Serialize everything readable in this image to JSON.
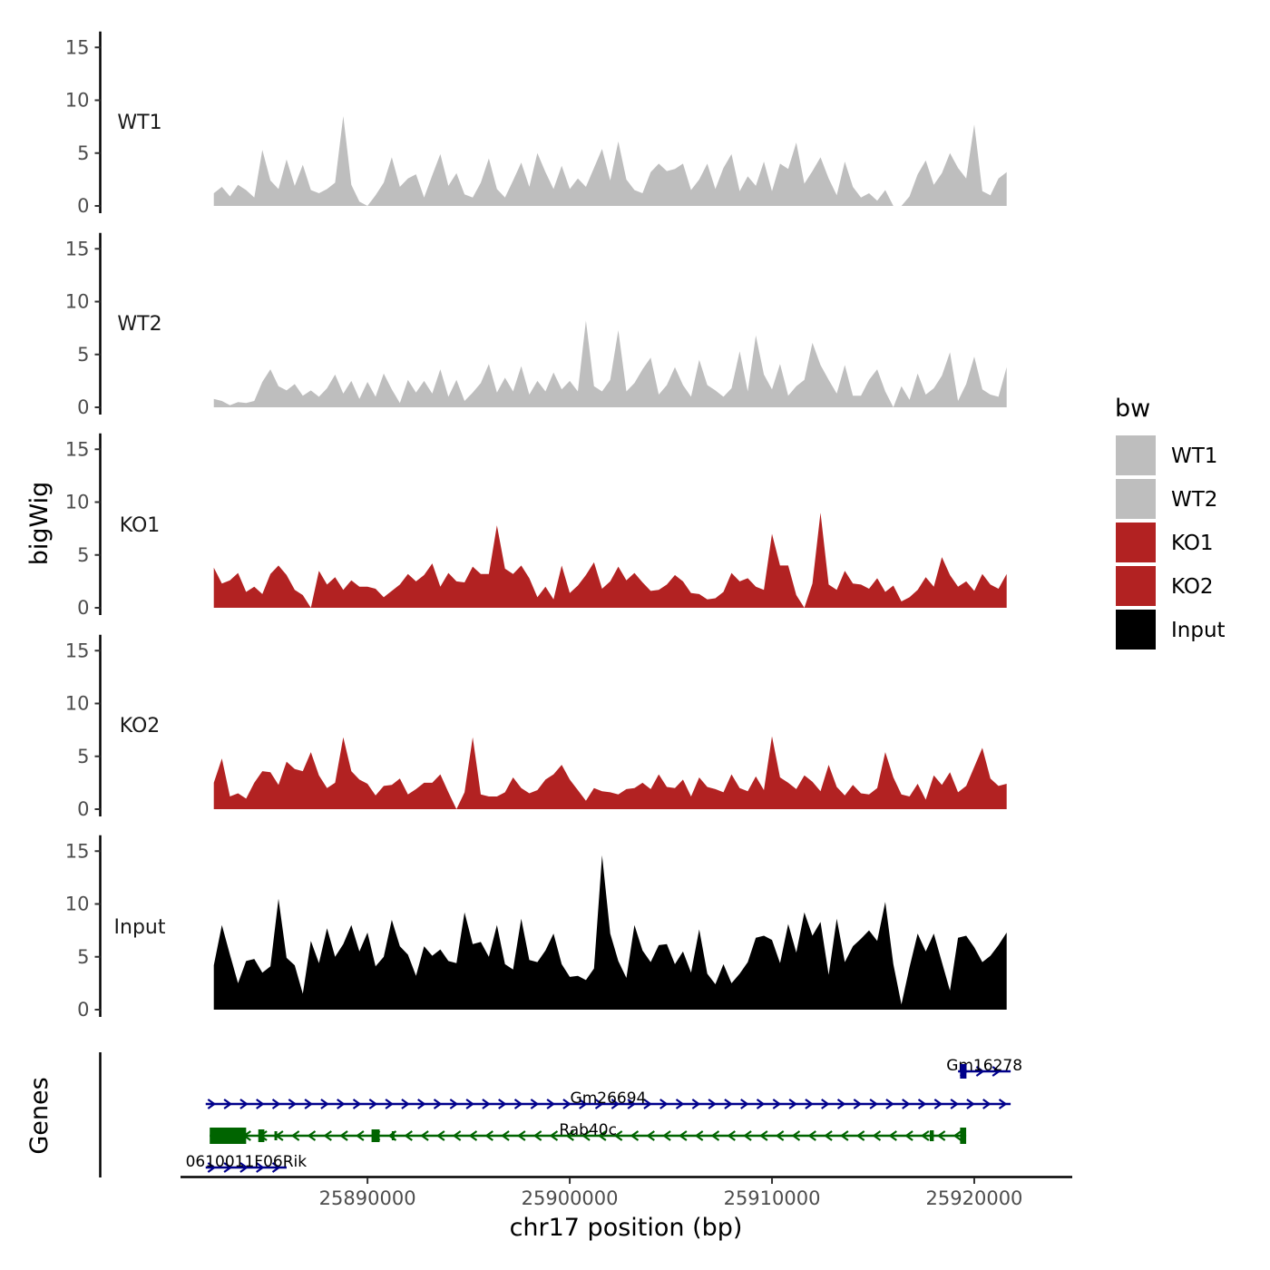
{
  "chart_data": {
    "type": "area",
    "title": "",
    "y_axis_title": "bigWig",
    "genes_axis_title": "Genes",
    "xlabel": "chr17 position (bp)",
    "x_range": [
      25880800,
      25924800
    ],
    "x_ticks": [
      25890000,
      25900000,
      25910000,
      25920000
    ],
    "x_tick_labels": [
      "25890000",
      "25900000",
      "25910000",
      "25920000"
    ],
    "y_range": [
      0,
      16.5
    ],
    "y_ticks": [
      0,
      5,
      10,
      15
    ],
    "y_tick_labels": [
      "0",
      "5",
      "10",
      "15"
    ],
    "legend": {
      "title": "bw",
      "items": [
        {
          "label": "WT1",
          "color": "#bebebe"
        },
        {
          "label": "WT2",
          "color": "#bebebe"
        },
        {
          "label": "KO1",
          "color": "#b22222"
        },
        {
          "label": "KO2",
          "color": "#b22222"
        },
        {
          "label": "Input",
          "color": "#000000"
        }
      ]
    },
    "signal_x": [
      25882400,
      25882800,
      25883200,
      25883600,
      25884000,
      25884400,
      25884800,
      25885200,
      25885600,
      25886000,
      25886400,
      25886800,
      25887200,
      25887600,
      25888000,
      25888400,
      25888800,
      25889200,
      25889600,
      25890000,
      25890400,
      25890800,
      25891200,
      25891600,
      25892000,
      25892400,
      25892800,
      25893200,
      25893600,
      25894000,
      25894400,
      25894800,
      25895200,
      25895600,
      25896000,
      25896400,
      25896800,
      25897200,
      25897600,
      25898000,
      25898400,
      25898800,
      25899200,
      25899600,
      25900000,
      25900400,
      25900800,
      25901200,
      25901600,
      25902000,
      25902400,
      25902800,
      25903200,
      25903600,
      25904000,
      25904400,
      25904800,
      25905200,
      25905600,
      25906000,
      25906400,
      25906800,
      25907200,
      25907600,
      25908000,
      25908400,
      25908800,
      25909200,
      25909600,
      25910000,
      25910400,
      25910800,
      25911200,
      25911600,
      25912000,
      25912400,
      25912800,
      25913200,
      25913600,
      25914000,
      25914400,
      25914800,
      25915200,
      25915600,
      25916000,
      25916400,
      25916800,
      25917200,
      25917600,
      25918000,
      25918400,
      25918800,
      25919200,
      25919600,
      25920000,
      25920400,
      25920800,
      25921200,
      25921600
    ],
    "series": [
      {
        "name": "WT1",
        "color": "#bebebe",
        "values": [
          1.2,
          1.8,
          0.9,
          2.0,
          1.5,
          0.8,
          5.3,
          2.4,
          1.6,
          4.4,
          1.9,
          3.9,
          1.5,
          1.2,
          1.6,
          2.2,
          8.5,
          2.0,
          0.4,
          0,
          1.0,
          2.2,
          4.6,
          1.8,
          2.6,
          3.0,
          0.8,
          2.9,
          4.9,
          1.9,
          3.1,
          1.1,
          0.8,
          2.2,
          4.5,
          1.6,
          0.8,
          2.4,
          4.1,
          1.8,
          5.0,
          3.2,
          1.6,
          3.8,
          1.6,
          2.6,
          1.8,
          3.6,
          5.4,
          2.4,
          6.1,
          2.5,
          1.5,
          1.2,
          3.2,
          4.0,
          3.3,
          3.5,
          4.0,
          1.5,
          2.5,
          4.0,
          1.6,
          3.6,
          4.9,
          1.4,
          2.8,
          1.9,
          4.2,
          1.4,
          4.0,
          3.5,
          6.0,
          2.1,
          3.3,
          4.6,
          2.6,
          1.0,
          4.2,
          1.8,
          0.8,
          1.2,
          0.5,
          1.5,
          0,
          0,
          0.9,
          3.0,
          4.3,
          2.0,
          3.1,
          5.0,
          3.6,
          2.6,
          7.7,
          1.4,
          1.0,
          2.6,
          3.2
        ]
      },
      {
        "name": "WT2",
        "color": "#bebebe",
        "values": [
          0.8,
          0.6,
          0.2,
          0.5,
          0.4,
          0.6,
          2.4,
          3.6,
          2.0,
          1.6,
          2.2,
          1.1,
          1.6,
          1.0,
          1.8,
          3.1,
          1.3,
          2.5,
          0.8,
          2.4,
          1.0,
          3.2,
          1.7,
          0.4,
          2.6,
          1.4,
          2.5,
          1.3,
          3.6,
          1.0,
          2.6,
          0.6,
          1.4,
          2.3,
          4.1,
          1.4,
          2.8,
          1.5,
          3.9,
          1.2,
          2.5,
          1.5,
          3.3,
          1.7,
          2.5,
          1.5,
          8.2,
          2.0,
          1.5,
          2.6,
          7.3,
          1.5,
          2.3,
          3.6,
          4.7,
          1.2,
          2.1,
          3.8,
          2.1,
          1.0,
          4.5,
          2.1,
          1.6,
          1.0,
          1.8,
          5.3,
          1.5,
          6.8,
          3.1,
          1.7,
          4.1,
          1.1,
          2.0,
          2.6,
          6.1,
          4.0,
          2.6,
          1.3,
          4.0,
          1.1,
          1.1,
          2.6,
          3.6,
          1.5,
          0,
          2.0,
          0.7,
          3.2,
          1.2,
          1.8,
          3.0,
          5.2,
          0.6,
          2.2,
          4.8,
          1.7,
          1.2,
          1.0,
          3.8
        ]
      },
      {
        "name": "KO1",
        "color": "#b22222",
        "values": [
          3.8,
          2.3,
          2.6,
          3.3,
          1.5,
          2.0,
          1.3,
          3.2,
          4.0,
          3.1,
          1.7,
          1.2,
          0,
          3.5,
          2.2,
          2.9,
          1.7,
          2.6,
          2.0,
          2.0,
          1.8,
          1.0,
          1.6,
          2.2,
          3.2,
          2.5,
          3.1,
          4.2,
          2.0,
          3.3,
          2.5,
          2.4,
          3.9,
          3.2,
          3.2,
          7.8,
          3.7,
          3.2,
          4.0,
          2.8,
          1.0,
          2.0,
          0.8,
          4.0,
          1.4,
          2.1,
          3.1,
          4.3,
          1.8,
          2.5,
          3.9,
          2.6,
          3.3,
          2.4,
          1.6,
          1.7,
          2.2,
          3.1,
          2.5,
          1.4,
          1.3,
          0.8,
          0.9,
          1.5,
          3.3,
          2.5,
          2.8,
          2.0,
          1.7,
          7.0,
          4.0,
          4.0,
          1.2,
          0,
          2.3,
          9.0,
          2.2,
          1.7,
          3.5,
          2.3,
          2.2,
          1.8,
          2.8,
          1.5,
          2.1,
          0.6,
          1.0,
          1.7,
          2.9,
          2.0,
          4.8,
          3.1,
          2.0,
          2.5,
          1.6,
          3.2,
          2.2,
          1.8,
          3.2
        ]
      },
      {
        "name": "KO2",
        "color": "#b22222",
        "values": [
          2.5,
          4.8,
          1.2,
          1.5,
          1.0,
          2.5,
          3.6,
          3.5,
          2.3,
          4.5,
          3.8,
          3.6,
          5.4,
          3.2,
          2.0,
          2.5,
          6.8,
          3.6,
          2.8,
          2.4,
          1.3,
          2.2,
          2.3,
          2.9,
          1.4,
          1.9,
          2.5,
          2.5,
          3.3,
          1.6,
          0,
          1.6,
          6.8,
          1.4,
          1.2,
          1.2,
          1.6,
          3.0,
          2.0,
          1.5,
          1.8,
          2.8,
          3.3,
          4.2,
          2.8,
          1.8,
          0.8,
          2.0,
          1.7,
          1.6,
          1.4,
          1.9,
          2.0,
          2.5,
          1.9,
          3.3,
          2.1,
          2.0,
          2.8,
          1.2,
          3.0,
          2.1,
          1.9,
          1.6,
          3.3,
          2.0,
          1.7,
          3.1,
          1.8,
          6.9,
          3.0,
          2.5,
          1.9,
          3.2,
          2.6,
          1.7,
          4.2,
          2.1,
          1.3,
          2.3,
          1.5,
          1.4,
          2.0,
          5.4,
          3.0,
          1.4,
          1.2,
          2.4,
          0.9,
          3.2,
          2.3,
          3.5,
          1.6,
          2.2,
          4.0,
          5.8,
          2.9,
          2.2,
          2.4
        ]
      },
      {
        "name": "Input",
        "color": "#000000",
        "values": [
          4.2,
          8.0,
          5.2,
          2.5,
          4.6,
          4.8,
          3.5,
          4.1,
          10.5,
          4.9,
          4.2,
          1.5,
          6.5,
          4.4,
          7.7,
          5.0,
          6.2,
          8.0,
          5.5,
          7.3,
          4.1,
          5.0,
          8.5,
          6.0,
          5.2,
          3.2,
          6.0,
          5.1,
          5.7,
          4.6,
          4.4,
          9.2,
          6.2,
          6.4,
          5.0,
          8.0,
          4.3,
          3.8,
          8.6,
          4.7,
          4.5,
          5.6,
          7.2,
          4.3,
          3.1,
          3.2,
          2.8,
          3.9,
          14.6,
          7.2,
          4.6,
          3.0,
          8.0,
          5.6,
          4.5,
          6.1,
          6.2,
          4.3,
          5.5,
          3.5,
          7.6,
          3.4,
          2.4,
          4.3,
          2.5,
          3.4,
          4.5,
          6.8,
          7.0,
          6.6,
          4.4,
          8.1,
          5.4,
          9.2,
          7.0,
          8.3,
          3.3,
          8.6,
          4.5,
          6.0,
          6.7,
          7.5,
          6.5,
          10.2,
          4.3,
          0.5,
          4.0,
          7.2,
          5.5,
          7.2,
          4.5,
          1.8,
          6.8,
          7.0,
          5.9,
          4.5,
          5.1,
          6.1,
          7.3
        ]
      }
    ],
    "genes": [
      {
        "name": "Gm16278",
        "strand": "+",
        "start": 25919200,
        "end": 25921800,
        "row": 0,
        "color": "#00008b"
      },
      {
        "name": "Gm26694",
        "strand": "+",
        "start": 25882000,
        "end": 25921800,
        "row": 1,
        "color": "#00008b"
      },
      {
        "name": "Rab40c",
        "strand": "-",
        "start": 25882200,
        "end": 25919600,
        "row": 2,
        "color": "#006400"
      },
      {
        "name": "0610011F06Rik",
        "strand": "+",
        "start": 25882000,
        "end": 25886000,
        "row": 3,
        "color": "#00008b"
      }
    ]
  }
}
